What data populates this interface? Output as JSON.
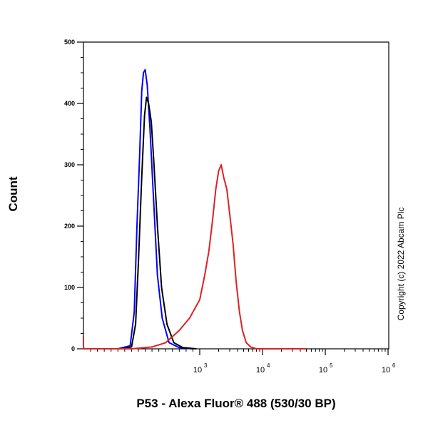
{
  "chart_data": {
    "type": "line",
    "title": "",
    "xlabel": "P53 - Alexa Fluor® 488 (530/30 BP)",
    "ylabel": "Count",
    "x_scale": "logicle",
    "ylim": [
      0,
      500
    ],
    "yticks": [
      0,
      100,
      200,
      300,
      400,
      500
    ],
    "xticks": [
      {
        "value": 1000,
        "label": "10",
        "exp": "3"
      },
      {
        "value": 10000,
        "label": "10",
        "exp": "4"
      },
      {
        "value": 100000,
        "label": "10",
        "exp": "5"
      },
      {
        "value": 1000000,
        "label": "10",
        "exp": "6"
      }
    ],
    "grid": false,
    "legend": "none",
    "series": [
      {
        "color": "#0000ff",
        "x": [
          -200,
          -20,
          40,
          80,
          120,
          150,
          175,
          200,
          230,
          270,
          320,
          380,
          450,
          550,
          700,
          900
        ],
        "y": [
          0,
          5,
          60,
          200,
          320,
          420,
          450,
          455,
          430,
          360,
          250,
          120,
          50,
          10,
          2,
          0
        ]
      },
      {
        "color": "#000000",
        "x": [
          -150,
          0,
          60,
          100,
          150,
          190,
          220,
          250,
          290,
          330,
          380,
          440,
          520,
          620,
          750,
          950
        ],
        "y": [
          0,
          3,
          40,
          140,
          280,
          380,
          410,
          400,
          370,
          300,
          200,
          100,
          40,
          10,
          2,
          0
        ]
      },
      {
        "color": "#dd2222",
        "x": [
          -1000,
          -900,
          -700,
          -400,
          0,
          300,
          500,
          700,
          850,
          1000,
          1200,
          1400,
          1600,
          1800,
          2000,
          2200,
          2400,
          2700,
          3000,
          3400,
          3800,
          4300,
          4800,
          5500,
          6500,
          8000,
          12000,
          50000
        ],
        "y": [
          20,
          5,
          0,
          0,
          0,
          3,
          10,
          30,
          50,
          80,
          120,
          160,
          210,
          260,
          290,
          300,
          280,
          260,
          220,
          170,
          110,
          60,
          30,
          10,
          3,
          0,
          0,
          0
        ]
      }
    ]
  },
  "copyright": "Copyright (c) 2022 Abcam Plc"
}
